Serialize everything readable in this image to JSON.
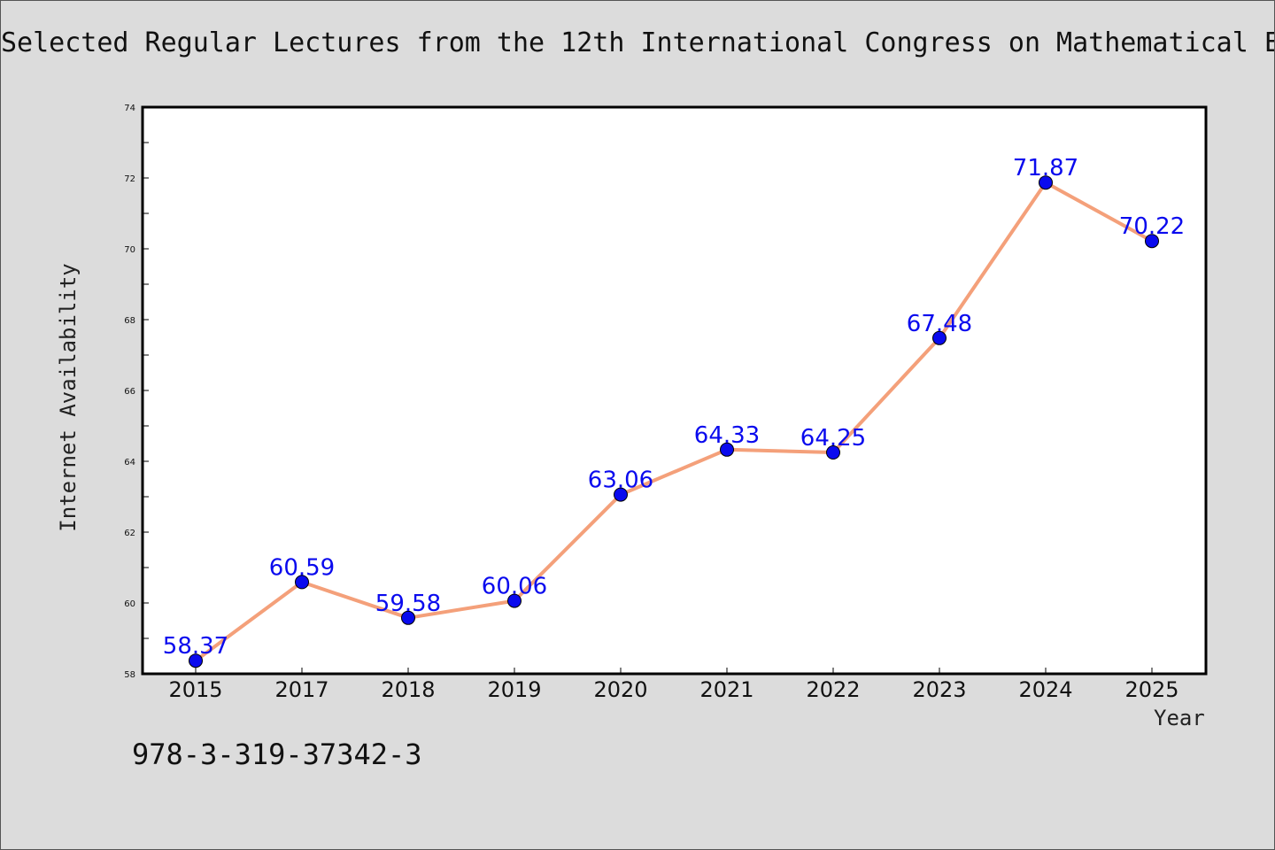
{
  "page": {
    "title": "Selected Regular Lectures from the 12th International Congress on Mathematical E",
    "footnote": "978-3-319-37342-3"
  },
  "chart_data": {
    "type": "line",
    "title": "Selected Regular Lectures from the 12th International Congress on Mathematical E",
    "xlabel": "Year",
    "ylabel": "Internet Availability",
    "categories": [
      "2015",
      "2017",
      "2018",
      "2019",
      "2020",
      "2021",
      "2022",
      "2023",
      "2024",
      "2025"
    ],
    "series": [
      {
        "values": [
          58.37,
          60.59,
          59.58,
          60.06,
          63.06,
          64.33,
          64.25,
          67.48,
          71.87,
          70.22
        ],
        "labels": [
          "58.37",
          "60.59",
          "59.58",
          "60.06",
          "63.06",
          "64.33",
          "64.25",
          "67.48",
          "71.87",
          "70.22"
        ]
      }
    ],
    "ylim": [
      58,
      74
    ],
    "yticks": [
      "58",
      "60",
      "62",
      "64",
      "66",
      "68",
      "70",
      "72",
      "74"
    ],
    "grid": false,
    "colors": {
      "line": "#f4a07a",
      "marker": "#0a0aee",
      "label": "#0a0aee",
      "background": "#ffffff"
    }
  }
}
